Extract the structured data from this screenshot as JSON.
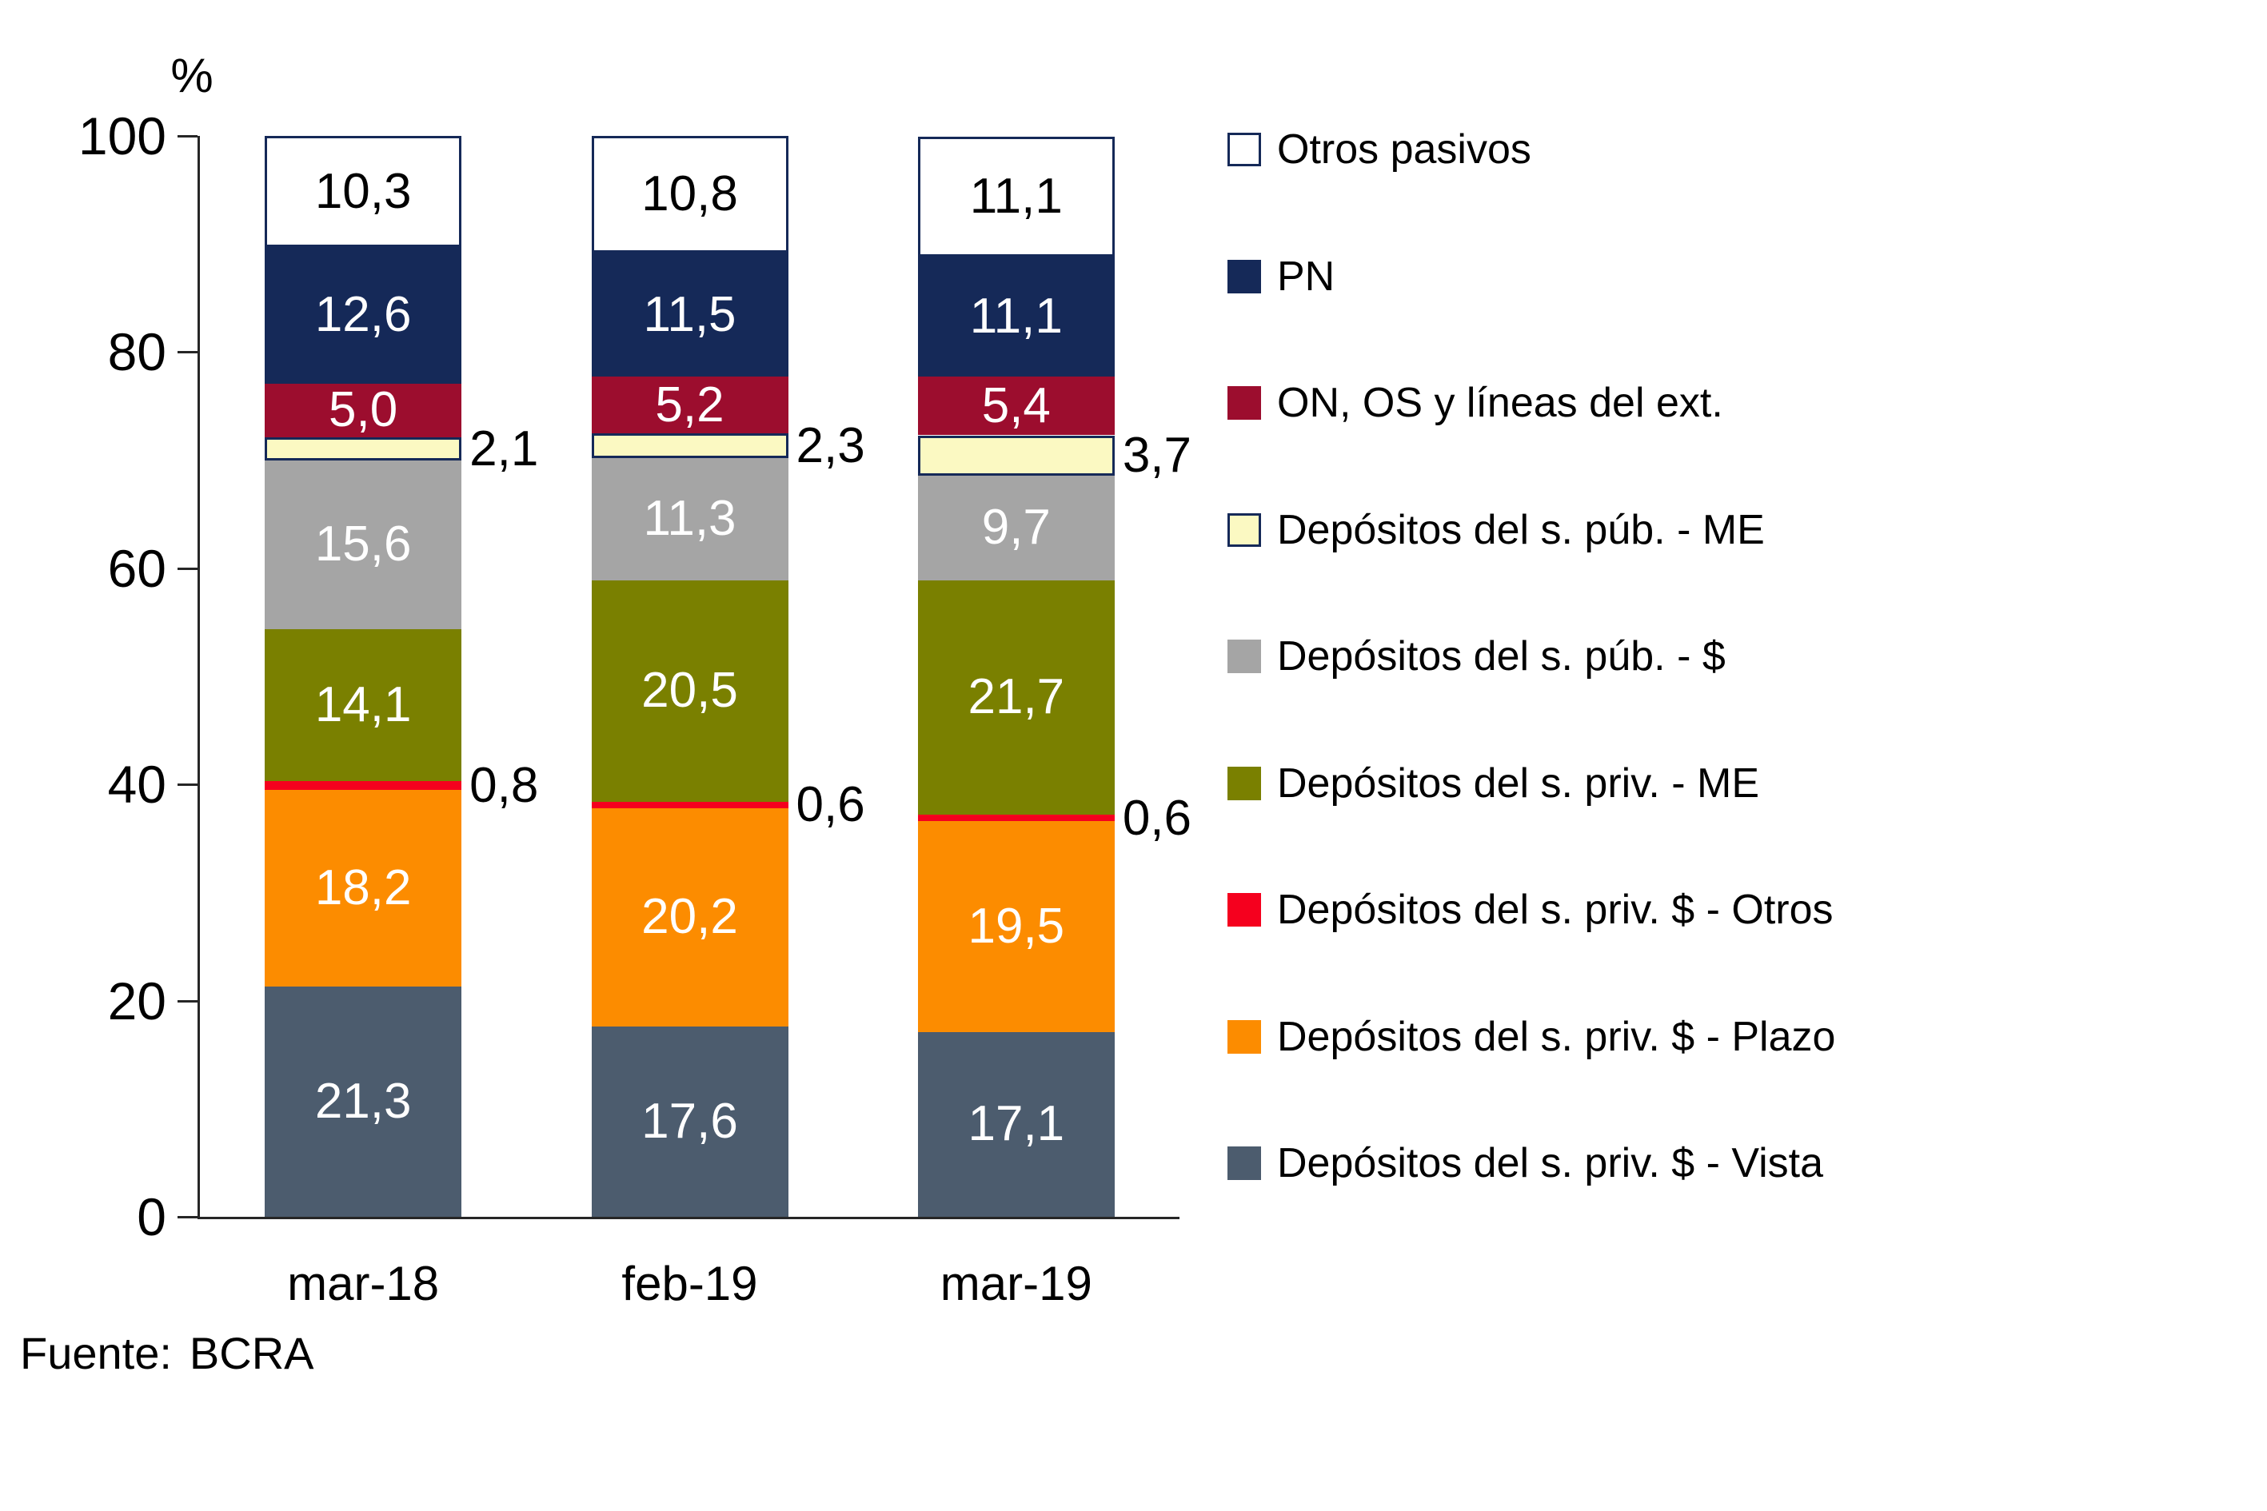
{
  "chart_data": {
    "type": "bar",
    "stacked": true,
    "unit_label": "%",
    "categories": [
      "mar-18",
      "feb-19",
      "mar-19"
    ],
    "series": [
      {
        "name": "Depósitos del s. priv. $ - Vista",
        "color": "#4C5C6E",
        "values": [
          21.3,
          17.6,
          17.1
        ],
        "labels": [
          "21,3",
          "17,6",
          "17,1"
        ],
        "label_placement": "inside",
        "label_color": "#FFFFFF"
      },
      {
        "name": "Depósitos del s. priv. $ - Plazo",
        "color": "#FC8C00",
        "values": [
          18.2,
          20.2,
          19.5
        ],
        "labels": [
          "18,2",
          "20,2",
          "19,5"
        ],
        "label_placement": "inside",
        "label_color": "#FFFFFF"
      },
      {
        "name": "Depósitos del s. priv. $ - Otros",
        "color": "#F5001E",
        "values": [
          0.8,
          0.6,
          0.6
        ],
        "labels": [
          "0,8",
          "0,6",
          "0,6"
        ],
        "label_placement": "outside",
        "label_color": "#000000"
      },
      {
        "name": "Depósitos del s. priv. - ME",
        "color": "#7A8000",
        "values": [
          14.1,
          20.5,
          21.7
        ],
        "labels": [
          "14,1",
          "20,5",
          "21,7"
        ],
        "label_placement": "inside",
        "label_color": "#FFFFFF"
      },
      {
        "name": "Depósitos del s. púb. - $",
        "color": "#A5A5A5",
        "values": [
          15.6,
          11.3,
          9.7
        ],
        "labels": [
          "15,6",
          "11,3",
          "9,7"
        ],
        "label_placement": "inside",
        "label_color": "#FFFFFF"
      },
      {
        "name": "Depósitos del s. púb. - ME",
        "color": "#FBF9C2",
        "border_color": "#152958",
        "values": [
          2.1,
          2.3,
          3.7
        ],
        "labels": [
          "2,1",
          "2,3",
          "3,7"
        ],
        "label_placement": "outside",
        "label_color": "#000000"
      },
      {
        "name": "ON, OS y líneas del ext.",
        "color": "#9C0D2E",
        "values": [
          5.0,
          5.2,
          5.4
        ],
        "labels": [
          "5,0",
          "5,2",
          "5,4"
        ],
        "label_placement": "inside",
        "label_color": "#FFFFFF"
      },
      {
        "name": "PN",
        "color": "#152958",
        "values": [
          12.6,
          11.5,
          11.1
        ],
        "labels": [
          "12,6",
          "11,5",
          "11,1"
        ],
        "label_placement": "inside",
        "label_color": "#FFFFFF"
      },
      {
        "name": "Otros pasivos",
        "color": "#FFFFFF",
        "border_color": "#152958",
        "values": [
          10.3,
          10.8,
          11.1
        ],
        "labels": [
          "10,3",
          "10,8",
          "11,1"
        ],
        "label_placement": "inside",
        "label_color": "#000000"
      }
    ],
    "y_axis": {
      "min": 0,
      "max": 100,
      "tick_step": 20,
      "tick_labels": [
        "0",
        "20",
        "40",
        "60",
        "80",
        "100"
      ]
    },
    "legend": {
      "position": "right",
      "order": "reverse-of-stack"
    },
    "grid": false
  },
  "source": {
    "label": "Fuente:",
    "value": "BCRA"
  }
}
